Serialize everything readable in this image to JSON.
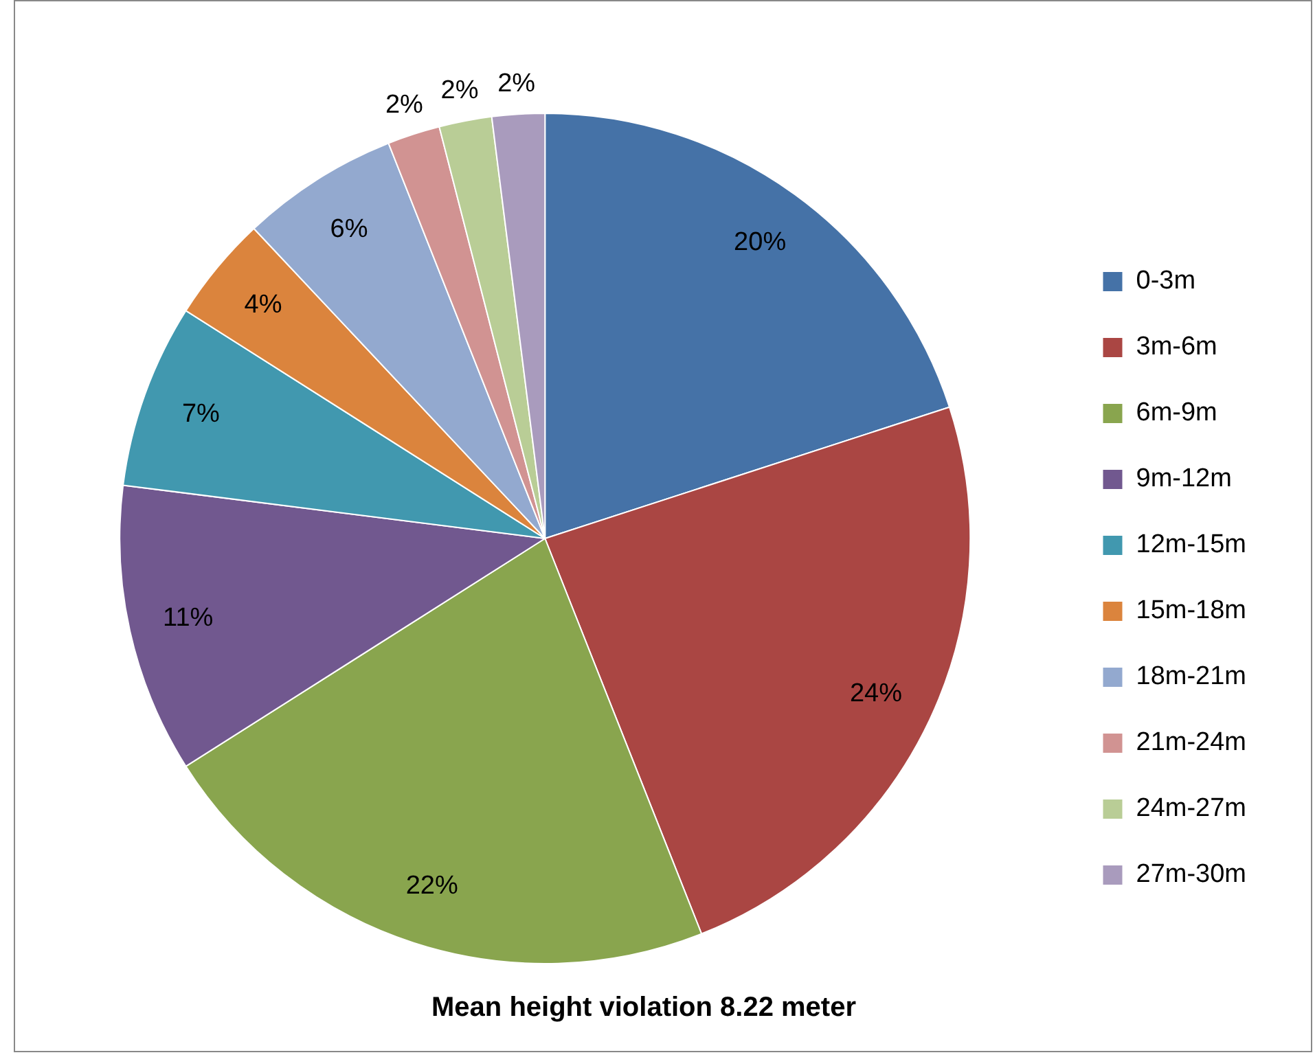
{
  "chart_data": {
    "type": "pie",
    "title": "Mean height violation 8.22 meter",
    "categories": [
      "0-3m",
      "3m-6m",
      "6m-9m",
      "9m-12m",
      "12m-15m",
      "15m-18m",
      "18m-21m",
      "21m-24m",
      "24m-27m",
      "27m-30m"
    ],
    "values": [
      20,
      24,
      22,
      11,
      7,
      4,
      6,
      2,
      2,
      2
    ],
    "colors": [
      "#4572a7",
      "#aa4643",
      "#89a54e",
      "#71588f",
      "#4198af",
      "#db843d",
      "#93a9cf",
      "#d19392",
      "#b9cd96",
      "#a99bbd"
    ],
    "value_labels": [
      "20%",
      "24%",
      "22%",
      "11%",
      "7%",
      "4%",
      "6%",
      "2%",
      "2%",
      "2%"
    ],
    "legend": "right"
  }
}
